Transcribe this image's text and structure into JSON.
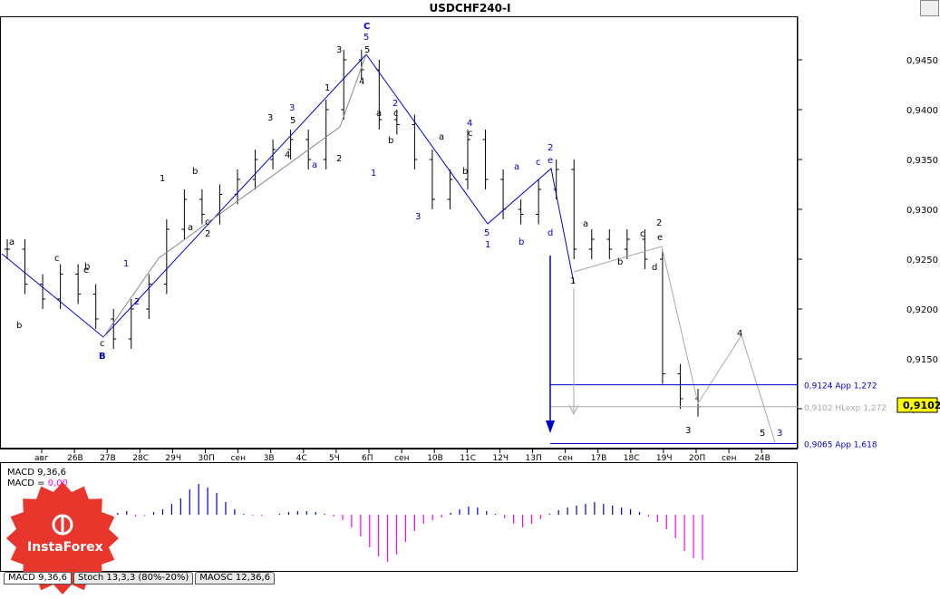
{
  "title": "USDCHF240-I",
  "price_axis": {
    "labels": [
      "0,9450",
      "0,9400",
      "0,9350",
      "0,9300",
      "0,9250",
      "0,9200",
      "0,9150",
      "0,9100"
    ],
    "current": "0,9102",
    "current_color": "#ffff00"
  },
  "time_axis": {
    "labels": [
      "авг",
      "26В",
      "27В",
      "28С",
      "29Ч",
      "30П",
      "сен",
      "3В",
      "4С",
      "5Ч",
      "6П",
      "сен",
      "10В",
      "11С",
      "12Ч",
      "13П",
      "сен",
      "17В",
      "18С",
      "19Ч",
      "20П",
      "сен",
      "24В"
    ]
  },
  "levels": [
    {
      "text": "0,9124 App 1,272",
      "price": 0.9124,
      "color": "#0000cc"
    },
    {
      "text": "0,9102 HLexp 1,272",
      "price": 0.9102,
      "color": "#aaaaaa"
    },
    {
      "text": "0,9065 App 1,618",
      "price": 0.9065,
      "color": "#0000cc"
    }
  ],
  "wave_labels_black": [
    "a",
    "b",
    "c",
    "d",
    "e",
    "1",
    "2",
    "3",
    "4",
    "5"
  ],
  "wave_labels_blue": [
    "A",
    "B",
    "C",
    "1",
    "2",
    "3",
    "4",
    "5",
    "a",
    "b",
    "c",
    "d",
    "e"
  ],
  "indicator": {
    "line1": "MACD 9,36,6",
    "line2_prefix": "MACD = ",
    "line2_value": "0,00",
    "value_color": "#ff00ff"
  },
  "tabs": [
    "MACD 9,36,6",
    "Stoch 13,3,3 (80%-20%)",
    "MAOSC 12,36,6"
  ],
  "logo_text": "InstaForex",
  "chart_data": {
    "type": "line",
    "title": "USDCHF240-I",
    "ylim": [
      0.9045,
      0.949
    ],
    "series": [
      {
        "values": [
          0.926,
          0.9225,
          0.921,
          0.9235,
          0.9215,
          0.919,
          0.917,
          0.92,
          0.9225,
          0.928,
          0.931,
          0.9295,
          0.9315,
          0.933,
          0.935,
          0.936,
          0.937,
          0.935,
          0.94,
          0.945,
          0.944,
          0.939,
          0.9385,
          0.935,
          0.931,
          0.933,
          0.937,
          0.933,
          0.93,
          0.9295,
          0.932,
          0.934,
          0.926,
          0.927,
          0.926,
          0.927,
          0.925,
          0.9135,
          0.911,
          0.9102
        ]
      }
    ]
  }
}
